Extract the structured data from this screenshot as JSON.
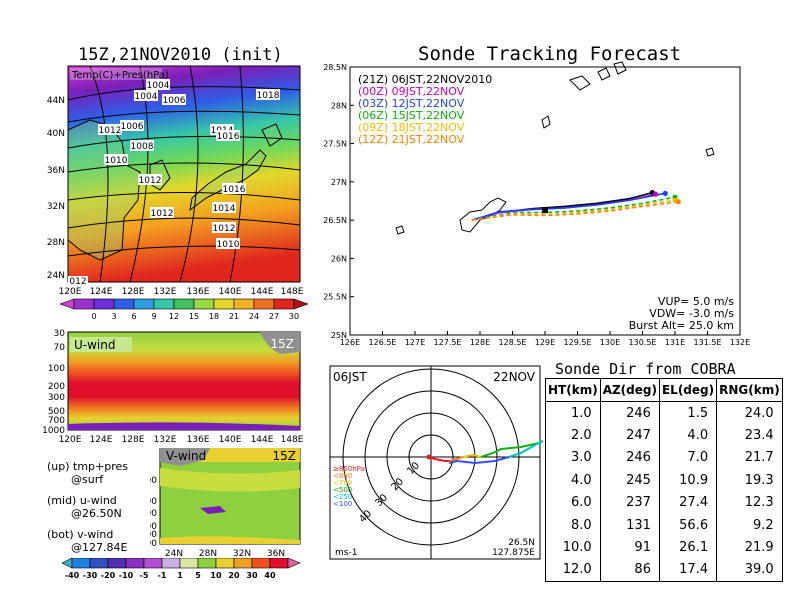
{
  "left_top": {
    "title": "15Z,21NOV2010 (init)",
    "overlay_label": "Temp(C)+Pres(hPa)",
    "lat_ticks": [
      "44N",
      "40N",
      "36N",
      "32N",
      "28N",
      "24N"
    ],
    "lon_ticks": [
      "120E",
      "124E",
      "128E",
      "132E",
      "136E",
      "140E",
      "144E",
      "148E"
    ],
    "isobar_labels": [
      "1004",
      "1004",
      "1006",
      "1018",
      "1012",
      "1006",
      "1014",
      "1016",
      "1008",
      "1010",
      "1012",
      "1016",
      "1012",
      "1014",
      "1012",
      "1010",
      "012"
    ],
    "colorbar_labels": [
      "0",
      "3",
      "6",
      "9",
      "12",
      "15",
      "18",
      "21",
      "24",
      "27",
      "30"
    ],
    "colors": {
      "cold": "#7a1fb8",
      "cool": "#2f5ee6",
      "mild": "#35c7a8",
      "warm": "#e3d82a",
      "hot": "#e0261f"
    }
  },
  "u_wind": {
    "label": "U-wind",
    "time_label": "15Z",
    "pressure_ticks": [
      "30",
      "70",
      "100",
      "200",
      "300",
      "500",
      "700",
      "1000"
    ],
    "lon_ticks": [
      "120E",
      "124E",
      "128E",
      "132E",
      "136E",
      "140E",
      "144E",
      "148E"
    ]
  },
  "v_wind": {
    "label": "V-wind",
    "time_label": "15Z",
    "pressure_ticks": [
      "100",
      "200",
      "300",
      "500",
      "700",
      "1000"
    ],
    "lat_ticks": [
      "24N",
      "28N",
      "32N",
      "36N"
    ]
  },
  "notes": {
    "line1": "(up) tmp+pres",
    "line2": "@surf",
    "line3": "(mid) u-wind",
    "line4": "@26.50N",
    "line5": "(bot) v-wind",
    "line6": "@127.84E"
  },
  "wind_colorbar_labels": [
    "-40",
    "-30",
    "-20",
    "-10",
    "-5",
    "-1",
    "1",
    "5",
    "10",
    "20",
    "30",
    "40"
  ],
  "sonde": {
    "title": "Sonde Tracking Forecast",
    "legend": [
      {
        "label": "(21Z)  06JST,22NOV2010",
        "color": "#000000"
      },
      {
        "label": "(00Z)  09JST,22NOV",
        "color": "#c000c0"
      },
      {
        "label": "(03Z)  12JST,22NOV",
        "color": "#2040ff"
      },
      {
        "label": "(06Z)  15JST,22NOV",
        "color": "#10b010"
      },
      {
        "label": "(09Z)  18JST,22NOV",
        "color": "#f0c000"
      },
      {
        "label": "(12Z)  21JST,22NOV",
        "color": "#ff8000"
      }
    ],
    "params": {
      "vup": "VUP=  5.0  m/s",
      "vdw": "VDW= -3.0  m/s",
      "burst": "Burst Alt=  25.0  km"
    }
  },
  "chart_data": {
    "type": "line",
    "title": "Sonde Tracking Forecast",
    "xlim": [
      126,
      132
    ],
    "ylim": [
      25,
      28.5
    ],
    "x_ticks": [
      "126E",
      "126.5E",
      "127E",
      "127.5E",
      "128E",
      "128.5E",
      "129E",
      "129.5E",
      "130E",
      "130.5E",
      "131E",
      "131.5E",
      "132E"
    ],
    "y_ticks": [
      "25N",
      "25.5N",
      "26N",
      "26.5N",
      "27N",
      "27.5N",
      "28N",
      "28.5N"
    ],
    "series": [
      {
        "name": "(21Z)  06JST,22NOV2010",
        "color": "#000000",
        "dashed": false,
        "x": [
          127.875,
          128.3,
          128.8,
          129.3,
          129.8,
          130.3,
          130.65
        ],
        "y": [
          26.5,
          26.6,
          26.65,
          26.68,
          26.72,
          26.78,
          26.86
        ]
      },
      {
        "name": "(00Z)  09JST,22NOV",
        "color": "#c000c0",
        "dashed": false,
        "x": [
          127.875,
          128.3,
          128.8,
          129.3,
          129.8,
          130.3,
          130.7
        ],
        "y": [
          26.5,
          26.6,
          26.64,
          26.66,
          26.7,
          26.76,
          26.84
        ]
      },
      {
        "name": "(03Z)  12JST,22NOV",
        "color": "#2040ff",
        "dashed": false,
        "x": [
          127.875,
          128.3,
          128.8,
          129.3,
          129.8,
          130.3,
          130.85
        ],
        "y": [
          26.5,
          26.61,
          26.64,
          26.66,
          26.7,
          26.76,
          26.85
        ]
      },
      {
        "name": "(06Z)  15JST,22NOV",
        "color": "#10b010",
        "dashed": true,
        "x": [
          127.875,
          128.5,
          129.0,
          129.5,
          130.0,
          130.5,
          131.0
        ],
        "y": [
          26.5,
          26.6,
          26.6,
          26.62,
          26.66,
          26.72,
          26.8
        ]
      },
      {
        "name": "(09Z)  18JST,22NOV",
        "color": "#f0c000",
        "dashed": true,
        "x": [
          127.875,
          128.5,
          129.0,
          129.5,
          130.0,
          130.5,
          131.0
        ],
        "y": [
          26.5,
          26.58,
          26.57,
          26.6,
          26.64,
          26.7,
          26.76
        ]
      },
      {
        "name": "(12Z)  21JST,22NOV",
        "color": "#ff8000",
        "dashed": true,
        "x": [
          127.875,
          128.5,
          129.0,
          129.5,
          130.0,
          130.5,
          131.05
        ],
        "y": [
          26.5,
          26.57,
          26.56,
          26.58,
          26.62,
          26.68,
          26.74
        ]
      }
    ]
  },
  "polar": {
    "time_label": "06JST",
    "date_label": "22NOV",
    "ring_labels": [
      "10",
      "20",
      "30",
      "40"
    ],
    "pressure_legend": [
      {
        "label": "≥850hPa",
        "color": "#e02020"
      },
      {
        "label": "<850",
        "color": "#ff8000"
      },
      {
        "label": "<700",
        "color": "#e0c000"
      },
      {
        "label": "<500",
        "color": "#10b010"
      },
      {
        "label": "<250",
        "color": "#00c0c0"
      },
      {
        "label": "<100",
        "color": "#3050ff"
      }
    ],
    "unit": "ms-1",
    "lat": "26.5N",
    "lon": "127.875E"
  },
  "direction_table": {
    "title": "Sonde Dir from COBRA",
    "headers": [
      "HT(km)",
      "AZ(deg)",
      "EL(deg)",
      "RNG(km)"
    ],
    "rows": [
      [
        "1.0",
        "246",
        "1.5",
        "24.0"
      ],
      [
        "2.0",
        "247",
        "4.0",
        "23.4"
      ],
      [
        "3.0",
        "246",
        "7.0",
        "21.7"
      ],
      [
        "4.0",
        "245",
        "10.9",
        "19.3"
      ],
      [
        "6.0",
        "237",
        "27.4",
        "12.3"
      ],
      [
        "8.0",
        "131",
        "56.6",
        "9.2"
      ],
      [
        "10.0",
        "91",
        "26.1",
        "21.9"
      ],
      [
        "12.0",
        "86",
        "17.4",
        "39.0"
      ]
    ]
  }
}
